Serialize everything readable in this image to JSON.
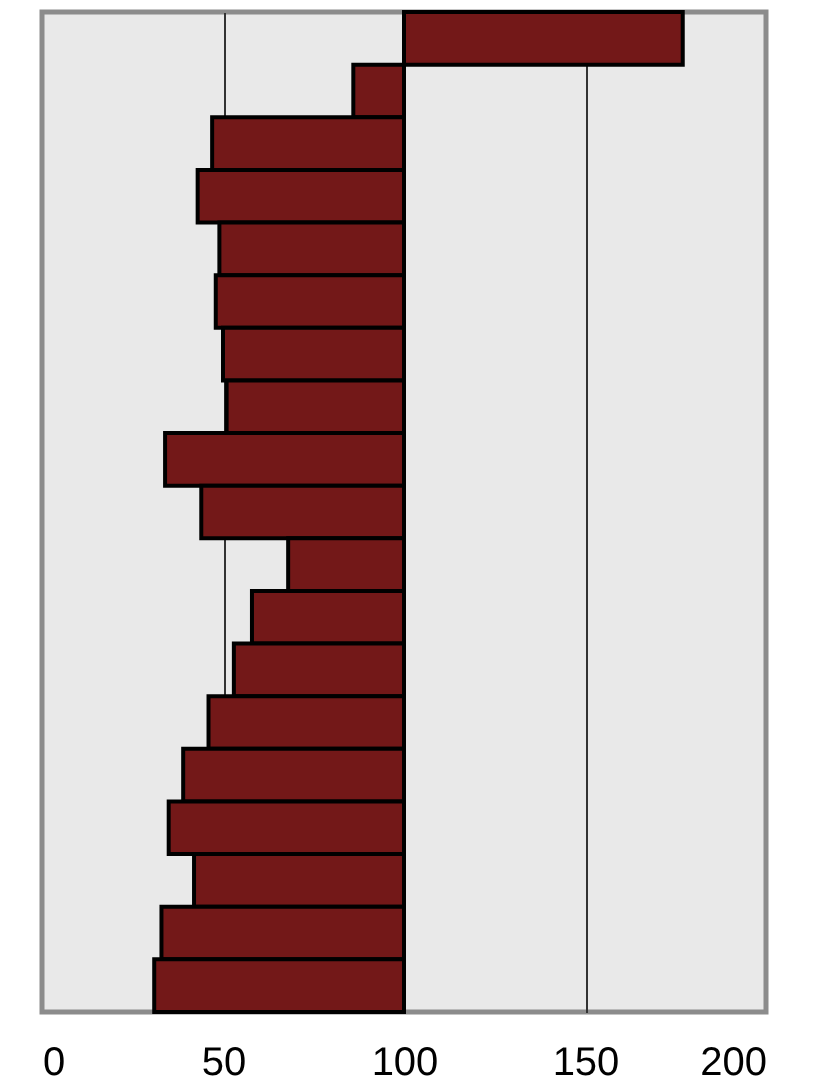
{
  "chart_data": {
    "type": "bar",
    "orientation": "horizontal",
    "categories": [
      null,
      null,
      null,
      null,
      null,
      null,
      null,
      null,
      null,
      null,
      null,
      null,
      null,
      null,
      null,
      null,
      null,
      null,
      null
    ],
    "base": [
      100,
      100,
      100,
      100,
      100,
      100,
      100,
      100,
      100,
      100,
      100,
      100,
      100,
      100,
      100,
      100,
      100,
      100,
      100
    ],
    "values": [
      77,
      -14,
      -53,
      -57,
      -51,
      -52,
      -50,
      -49,
      -66,
      -56,
      -32,
      -42,
      -47,
      -54,
      -61,
      -65,
      -58,
      -67,
      -69
    ],
    "color": "#731818",
    "xlim": [
      0,
      200
    ],
    "xticks": [
      0,
      50,
      100,
      150,
      200
    ],
    "grid": "x",
    "tick_labels": "x"
  }
}
